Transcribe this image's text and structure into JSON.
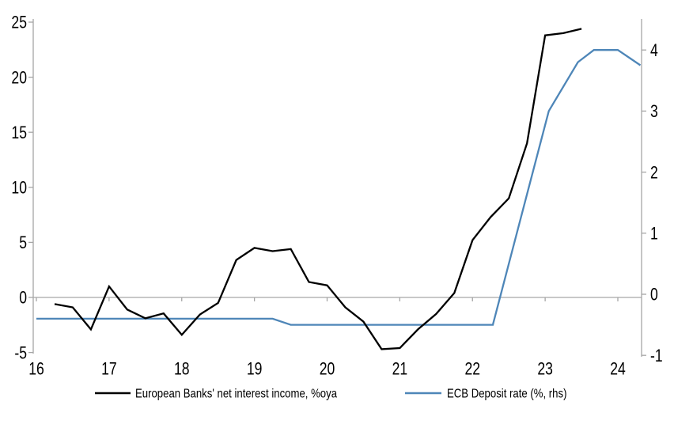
{
  "chart_data": {
    "type": "line",
    "grid": "off",
    "legend_position": "bottom",
    "x_axis": {
      "range": [
        16,
        24.33
      ],
      "ticks": [
        16,
        17,
        18,
        19,
        20,
        21,
        22,
        23,
        24
      ],
      "labels": [
        "16",
        "17",
        "18",
        "19",
        "20",
        "21",
        "22",
        "23",
        "24"
      ]
    },
    "left_axis": {
      "range": [
        -5.1,
        25
      ],
      "ticks": [
        25,
        20,
        15,
        10,
        5,
        0,
        -5
      ],
      "labels": [
        "25",
        "20",
        "15",
        "10",
        "5",
        "0",
        "-5"
      ]
    },
    "right_axis": {
      "range": [
        -1.03,
        4.46
      ],
      "ticks": [
        4,
        3,
        2,
        1,
        0,
        -1
      ],
      "labels": [
        "4",
        "3",
        "2",
        "1",
        "0",
        "-1"
      ]
    },
    "series": [
      {
        "name": "European Banks' net interest income, %oya",
        "axis": "left",
        "color": "#000000",
        "points": [
          [
            16.25,
            -0.6
          ],
          [
            16.5,
            -0.9
          ],
          [
            16.75,
            -2.9
          ],
          [
            17.0,
            1.0
          ],
          [
            17.25,
            -1.1
          ],
          [
            17.5,
            -1.9
          ],
          [
            17.75,
            -1.45
          ],
          [
            18.0,
            -3.4
          ],
          [
            18.25,
            -1.55
          ],
          [
            18.5,
            -0.5
          ],
          [
            18.75,
            3.4
          ],
          [
            19.0,
            4.5
          ],
          [
            19.25,
            4.2
          ],
          [
            19.5,
            4.4
          ],
          [
            19.75,
            1.4
          ],
          [
            20.0,
            1.1
          ],
          [
            20.25,
            -0.9
          ],
          [
            20.5,
            -2.2
          ],
          [
            20.75,
            -4.7
          ],
          [
            21.0,
            -4.6
          ],
          [
            21.25,
            -2.9
          ],
          [
            21.5,
            -1.5
          ],
          [
            21.75,
            0.4
          ],
          [
            22.0,
            5.2
          ],
          [
            22.25,
            7.3
          ],
          [
            22.5,
            9.0
          ],
          [
            22.75,
            14.0
          ],
          [
            23.0,
            23.8
          ],
          [
            23.25,
            24.0
          ],
          [
            23.5,
            24.4
          ]
        ]
      },
      {
        "name": "ECB Deposit rate (%, rhs)",
        "axis": "right",
        "color": "#4e86b8",
        "points": [
          [
            16.0,
            -0.4
          ],
          [
            19.25,
            -0.4
          ],
          [
            19.5,
            -0.5
          ],
          [
            22.28,
            -0.5
          ],
          [
            23.05,
            3.0
          ],
          [
            23.45,
            3.8
          ],
          [
            23.67,
            4.0
          ],
          [
            24.0,
            4.0
          ],
          [
            24.31,
            3.75
          ]
        ]
      }
    ],
    "colors": {
      "axis_line": "#a6a6a6",
      "zero_line": "#a6a6a6",
      "text": "#000000",
      "background": "#ffffff"
    }
  }
}
